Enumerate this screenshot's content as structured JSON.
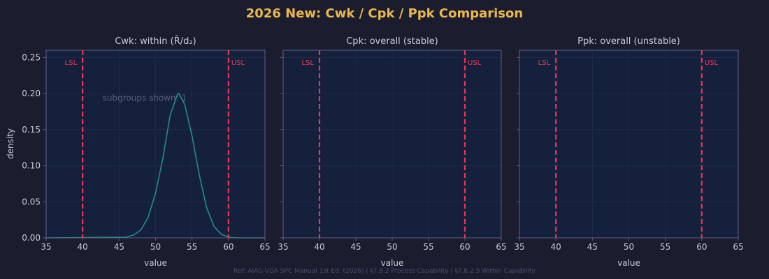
{
  "figure": {
    "title": "2026 New: Cwk / Cpk / Ppk Comparison",
    "footnote": "Ref: AIAG-VDA SPC Manual 1st Ed. (2026) | §7.8.2 Process Capability | §7.8.2.5 Within Capability",
    "ylabel": "density"
  },
  "colors": {
    "background": "#1b1c2e",
    "panel": "#15203d",
    "title": "#e8b84a",
    "text": "#c8cad6",
    "axis": "#5d6180",
    "spec_line": "#f0334f",
    "curve": "#1f8f86",
    "annotation": "#5a5f7a",
    "footnote": "#4c506a"
  },
  "chart_data": [
    {
      "type": "line",
      "title": "Cwk: within (R̄/d₂)",
      "xlabel": "value",
      "ylabel": "density",
      "xlim": [
        35,
        65
      ],
      "ylim": [
        0,
        0.26
      ],
      "xticks": [
        35,
        40,
        45,
        50,
        55,
        60,
        65
      ],
      "yticks": [
        0.0,
        0.05,
        0.1,
        0.15,
        0.2,
        0.25
      ],
      "spec_limits": [
        {
          "label": "LSL",
          "value": 40
        },
        {
          "label": "USL",
          "value": 60
        }
      ],
      "series": [
        {
          "x": [
            35,
            46,
            47,
            48,
            49,
            50,
            51,
            52,
            53,
            53.2,
            54,
            55,
            56,
            57,
            58,
            59,
            60,
            61,
            65
          ],
          "y": [
            0.0,
            0.001,
            0.004,
            0.011,
            0.029,
            0.062,
            0.11,
            0.17,
            0.199,
            0.2,
            0.185,
            0.141,
            0.087,
            0.042,
            0.016,
            0.005,
            0.001,
            0.0,
            0.0
          ]
        }
      ],
      "annotation": "subgroups shown: 1"
    },
    {
      "type": "line",
      "title": "Cpk: overall (stable)",
      "xlabel": "value",
      "xlim": [
        35,
        65
      ],
      "ylim": [
        0,
        0.26
      ],
      "xticks": [
        35,
        40,
        45,
        50,
        55,
        60,
        65
      ],
      "yticks": [
        0.0,
        0.05,
        0.1,
        0.15,
        0.2,
        0.25
      ],
      "spec_limits": [
        {
          "label": "LSL",
          "value": 40
        },
        {
          "label": "USL",
          "value": 60
        }
      ],
      "series": []
    },
    {
      "type": "line",
      "title": "Ppk: overall (unstable)",
      "xlabel": "value",
      "xlim": [
        35,
        65
      ],
      "ylim": [
        0,
        0.26
      ],
      "xticks": [
        35,
        40,
        45,
        50,
        55,
        60,
        65
      ],
      "yticks": [
        0.0,
        0.05,
        0.1,
        0.15,
        0.2,
        0.25
      ],
      "spec_limits": [
        {
          "label": "LSL",
          "value": 40
        },
        {
          "label": "USL",
          "value": 60
        }
      ],
      "series": []
    }
  ]
}
